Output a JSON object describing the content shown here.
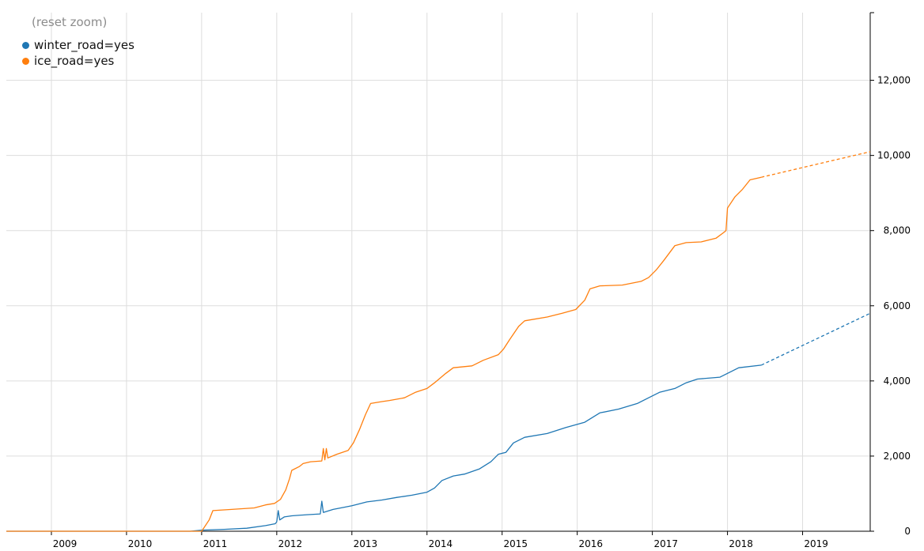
{
  "reset_zoom_label": "(reset zoom)",
  "colors": {
    "winter_road": "#1f77b4",
    "ice_road": "#ff7f0e",
    "grid": "#dddddd",
    "axis": "#000000"
  },
  "chart_data": {
    "type": "line",
    "title": "",
    "xlabel": "",
    "ylabel": "",
    "xlim": [
      2008.4,
      2019.9
    ],
    "ylim": [
      0,
      13800
    ],
    "x_ticks": [
      2009,
      2010,
      2011,
      2012,
      2013,
      2014,
      2015,
      2016,
      2017,
      2018,
      2019
    ],
    "x_tick_labels": [
      "2009",
      "2010",
      "2011",
      "2012",
      "2013",
      "2014",
      "2015",
      "2016",
      "2017",
      "2018",
      "2019"
    ],
    "y_ticks": [
      0,
      2000,
      4000,
      6000,
      8000,
      10000,
      12000
    ],
    "y_tick_labels": [
      "0",
      "2,000",
      "4,000",
      "6,000",
      "8,000",
      "10,000",
      "12,000"
    ],
    "y_axis_position": "right",
    "grid": true,
    "legend_position": "top-left",
    "series": [
      {
        "name": "winter_road=yes",
        "color": "#1f77b4",
        "points": [
          [
            2008.4,
            0
          ],
          [
            2010.85,
            0
          ],
          [
            2011.0,
            30
          ],
          [
            2011.3,
            50
          ],
          [
            2011.6,
            80
          ],
          [
            2011.85,
            150
          ],
          [
            2011.98,
            200
          ],
          [
            2012.0,
            250
          ],
          [
            2012.02,
            550
          ],
          [
            2012.04,
            300
          ],
          [
            2012.1,
            380
          ],
          [
            2012.2,
            410
          ],
          [
            2012.4,
            440
          ],
          [
            2012.58,
            460
          ],
          [
            2012.6,
            800
          ],
          [
            2012.62,
            500
          ],
          [
            2012.75,
            580
          ],
          [
            2012.9,
            640
          ],
          [
            2013.0,
            680
          ],
          [
            2013.2,
            780
          ],
          [
            2013.4,
            830
          ],
          [
            2013.6,
            900
          ],
          [
            2013.8,
            960
          ],
          [
            2014.0,
            1040
          ],
          [
            2014.1,
            1150
          ],
          [
            2014.2,
            1350
          ],
          [
            2014.35,
            1470
          ],
          [
            2014.5,
            1520
          ],
          [
            2014.7,
            1660
          ],
          [
            2014.85,
            1850
          ],
          [
            2014.95,
            2050
          ],
          [
            2015.05,
            2100
          ],
          [
            2015.15,
            2350
          ],
          [
            2015.3,
            2500
          ],
          [
            2015.6,
            2600
          ],
          [
            2015.85,
            2760
          ],
          [
            2016.1,
            2900
          ],
          [
            2016.3,
            3150
          ],
          [
            2016.55,
            3250
          ],
          [
            2016.8,
            3400
          ],
          [
            2016.95,
            3550
          ],
          [
            2017.1,
            3700
          ],
          [
            2017.3,
            3800
          ],
          [
            2017.45,
            3950
          ],
          [
            2017.6,
            4050
          ],
          [
            2017.9,
            4100
          ],
          [
            2018.0,
            4200
          ],
          [
            2018.15,
            4350
          ],
          [
            2018.45,
            4420
          ]
        ],
        "projection": [
          [
            2018.45,
            4420
          ],
          [
            2019.9,
            5800
          ]
        ]
      },
      {
        "name": "ice_road=yes",
        "color": "#ff7f0e",
        "points": [
          [
            2008.4,
            0
          ],
          [
            2011.0,
            0
          ],
          [
            2011.1,
            300
          ],
          [
            2011.15,
            550
          ],
          [
            2011.4,
            580
          ],
          [
            2011.7,
            620
          ],
          [
            2011.85,
            700
          ],
          [
            2011.97,
            740
          ],
          [
            2012.05,
            850
          ],
          [
            2012.12,
            1100
          ],
          [
            2012.17,
            1400
          ],
          [
            2012.2,
            1620
          ],
          [
            2012.3,
            1720
          ],
          [
            2012.35,
            1800
          ],
          [
            2012.45,
            1850
          ],
          [
            2012.6,
            1870
          ],
          [
            2012.62,
            2200
          ],
          [
            2012.64,
            1900
          ],
          [
            2012.66,
            2200
          ],
          [
            2012.68,
            1950
          ],
          [
            2012.8,
            2050
          ],
          [
            2012.95,
            2150
          ],
          [
            2013.02,
            2350
          ],
          [
            2013.1,
            2700
          ],
          [
            2013.18,
            3100
          ],
          [
            2013.25,
            3400
          ],
          [
            2013.4,
            3450
          ],
          [
            2013.5,
            3480
          ],
          [
            2013.7,
            3550
          ],
          [
            2013.85,
            3700
          ],
          [
            2014.0,
            3800
          ],
          [
            2014.1,
            3950
          ],
          [
            2014.25,
            4200
          ],
          [
            2014.35,
            4350
          ],
          [
            2014.6,
            4400
          ],
          [
            2014.75,
            4550
          ],
          [
            2014.95,
            4700
          ],
          [
            2015.02,
            4850
          ],
          [
            2015.1,
            5100
          ],
          [
            2015.22,
            5450
          ],
          [
            2015.3,
            5600
          ],
          [
            2015.6,
            5700
          ],
          [
            2015.8,
            5800
          ],
          [
            2015.98,
            5900
          ],
          [
            2016.1,
            6150
          ],
          [
            2016.17,
            6450
          ],
          [
            2016.3,
            6530
          ],
          [
            2016.6,
            6550
          ],
          [
            2016.85,
            6650
          ],
          [
            2016.95,
            6750
          ],
          [
            2017.05,
            6950
          ],
          [
            2017.15,
            7200
          ],
          [
            2017.3,
            7600
          ],
          [
            2017.45,
            7680
          ],
          [
            2017.65,
            7700
          ],
          [
            2017.85,
            7800
          ],
          [
            2017.95,
            7950
          ],
          [
            2017.98,
            8000
          ],
          [
            2018.0,
            8600
          ],
          [
            2018.1,
            8900
          ],
          [
            2018.2,
            9100
          ],
          [
            2018.3,
            9350
          ],
          [
            2018.45,
            9420
          ]
        ],
        "projection": [
          [
            2018.45,
            9420
          ],
          [
            2019.9,
            10100
          ]
        ]
      }
    ]
  }
}
